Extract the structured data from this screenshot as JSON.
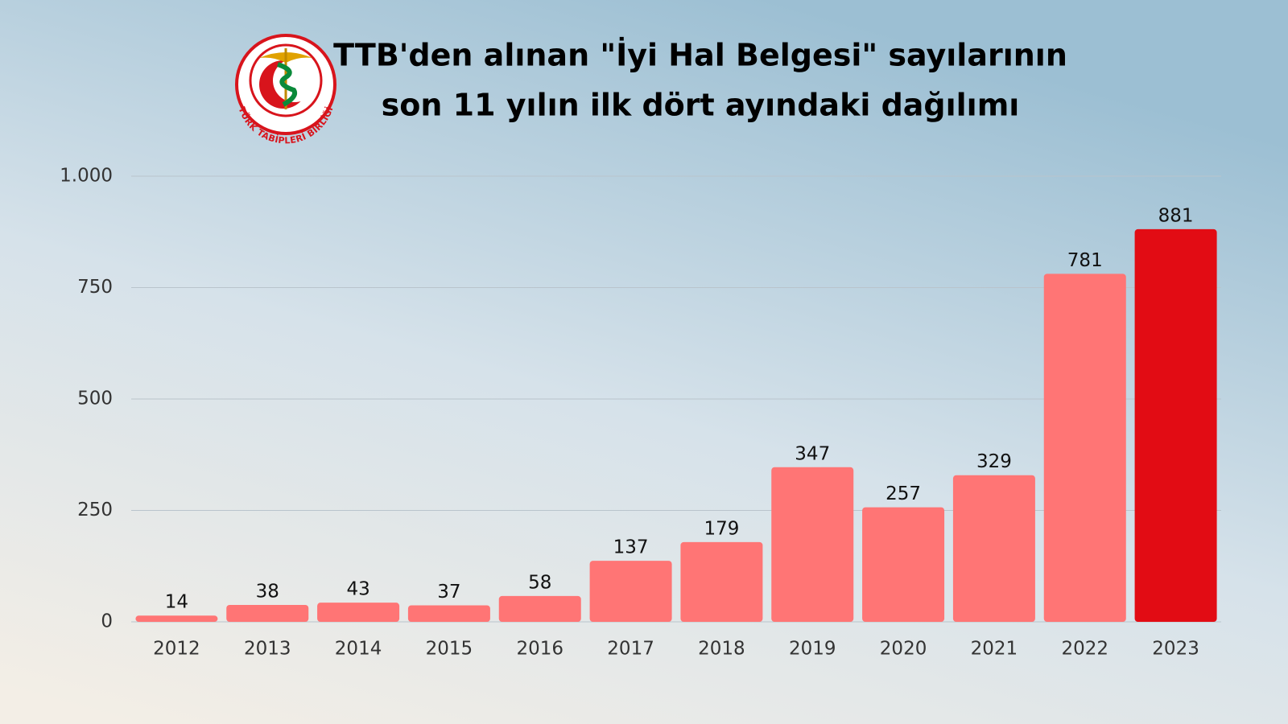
{
  "logo": {
    "text": "TÜRK TABİPLERİ BİRLİĞİ"
  },
  "chart_data": {
    "type": "bar",
    "title": [
      "TTB'den alınan \"İyi Hal Belgesi\" sayılarının",
      "son 11 yılın ilk dört ayındaki dağılımı"
    ],
    "categories": [
      "2012",
      "2013",
      "2014",
      "2015",
      "2016",
      "2017",
      "2018",
      "2019",
      "2020",
      "2021",
      "2022",
      "2023"
    ],
    "values": [
      14,
      38,
      43,
      37,
      58,
      137,
      179,
      347,
      257,
      329,
      781,
      881
    ],
    "colors": [
      "#ff7575",
      "#ff7575",
      "#ff7575",
      "#ff7575",
      "#ff7575",
      "#ff7575",
      "#ff7575",
      "#ff7575",
      "#ff7575",
      "#ff7575",
      "#ff7575",
      "#e20c14"
    ],
    "ylim": [
      0,
      1000
    ],
    "yticks": [
      0,
      250,
      500,
      750,
      {
        "value": 1000,
        "label": "1.000"
      }
    ],
    "grid": true
  }
}
